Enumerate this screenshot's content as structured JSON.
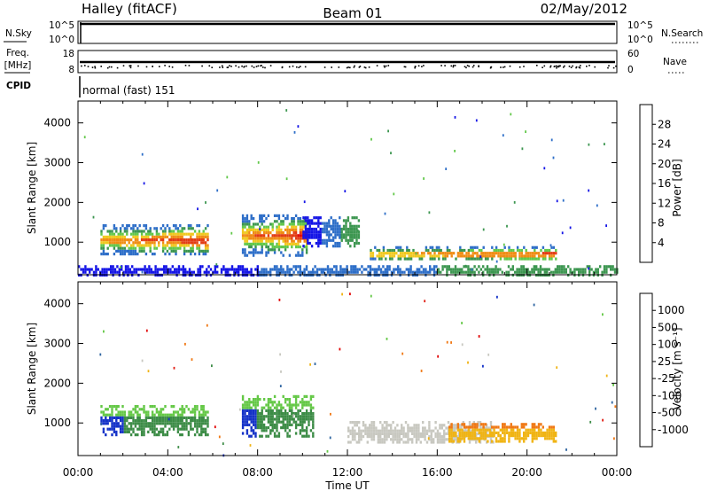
{
  "header": {
    "title": "Halley (fitACF)",
    "beam": "Beam 01",
    "date": "02/May/2012"
  },
  "status_panels": {
    "nsky_label": "N.Sky",
    "nsky_ticks": [
      "10^5",
      "10^0"
    ],
    "nsearch_label": "N.Search",
    "nsearch_ticks": [
      "10^5",
      "10^0"
    ],
    "freq_label_line1": "Freq.",
    "freq_label_line2": "[MHz]",
    "freq_ticks": [
      "18",
      "8"
    ],
    "nave_label": "Nave",
    "nave_ticks": [
      "60",
      "0"
    ],
    "cpid_label": "CPID",
    "cpid_value": "normal (fast) 151"
  },
  "chart_data": [
    {
      "type": "heatmap",
      "name": "power",
      "ylabel": "Slant Range [km]",
      "yticks": [
        "1000",
        "2000",
        "3000",
        "4000"
      ],
      "ylim": [
        180,
        4550
      ],
      "xlim_hours": [
        0,
        24
      ],
      "colorbar": {
        "label": "Power [dB]",
        "ticks": [
          "4",
          "8",
          "12",
          "16",
          "20",
          "24",
          "28"
        ],
        "colors": [
          "#1414e6",
          "#2d6ec8",
          "#3c9650",
          "#62c84a",
          "#f0c81e",
          "#f08c14",
          "#e23c14",
          "#e10000"
        ]
      },
      "regions": [
        {
          "t": [
            1.0,
            5.8
          ],
          "r": [
            700,
            1450
          ],
          "level": "high"
        },
        {
          "t": [
            7.3,
            10.2
          ],
          "r": [
            700,
            1700
          ],
          "level": "high"
        },
        {
          "t": [
            10.0,
            12.5
          ],
          "r": [
            900,
            1650
          ],
          "level": "low"
        },
        {
          "t": [
            13.0,
            21.3
          ],
          "r": [
            550,
            900
          ],
          "level": "high"
        },
        {
          "t": [
            0.0,
            24.0
          ],
          "r": [
            190,
            420
          ],
          "level": "low"
        }
      ]
    },
    {
      "type": "heatmap",
      "name": "velocity",
      "ylabel": "Slant Range [km]",
      "yticks": [
        "1000",
        "2000",
        "3000",
        "4000"
      ],
      "ylim": [
        180,
        4550
      ],
      "xlim_hours": [
        0,
        24
      ],
      "colorbar": {
        "label": "Velocity [m s⁻¹]",
        "ticks": [
          "1000",
          "500",
          "100",
          "25",
          "-25",
          "-100",
          "-500",
          "-1000"
        ],
        "colors": [
          "#1432c8",
          "#2d64a0",
          "#3c8c46",
          "#64c846",
          "#c8c8c0",
          "#f0b414",
          "#f07814",
          "#e11e14",
          "#e10000"
        ]
      },
      "regions": [
        {
          "t": [
            1.0,
            5.8
          ],
          "r": [
            700,
            1450
          ],
          "level": "toward"
        },
        {
          "t": [
            7.3,
            10.5
          ],
          "r": [
            700,
            1700
          ],
          "level": "toward"
        },
        {
          "t": [
            12.0,
            18.5
          ],
          "r": [
            500,
            1050
          ],
          "level": "near-zero"
        },
        {
          "t": [
            16.5,
            21.3
          ],
          "r": [
            550,
            1000
          ],
          "level": "away"
        }
      ]
    }
  ],
  "xaxis": {
    "ticks": [
      "00:00",
      "04:00",
      "08:00",
      "12:00",
      "16:00",
      "20:00",
      "00:00"
    ],
    "label": "Time UT"
  }
}
